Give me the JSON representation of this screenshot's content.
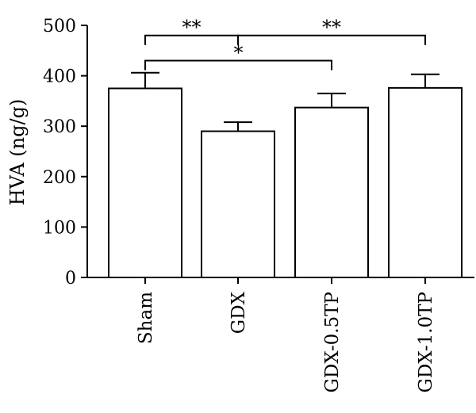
{
  "chart_data": {
    "type": "bar",
    "categories": [
      "Sham",
      "GDX",
      "GDX-0.5TP",
      "GDX-1.0TP"
    ],
    "values": [
      375,
      290,
      337,
      376
    ],
    "errors": [
      31,
      18,
      28,
      27
    ],
    "ylabel": "HVA (ng/g)",
    "xlabel": "",
    "ylim": [
      0,
      500
    ],
    "yticks": [
      0,
      100,
      200,
      300,
      400,
      500
    ],
    "grid": false,
    "bar_fill": "#ffffff",
    "stroke_color": "#000000",
    "significance": [
      {
        "from": 0,
        "to": 1,
        "label": "**",
        "level": 480
      },
      {
        "from": 1,
        "to": 3,
        "label": "**",
        "level": 480
      },
      {
        "from": 0,
        "to": 2,
        "label": "*",
        "level": 430
      }
    ]
  }
}
